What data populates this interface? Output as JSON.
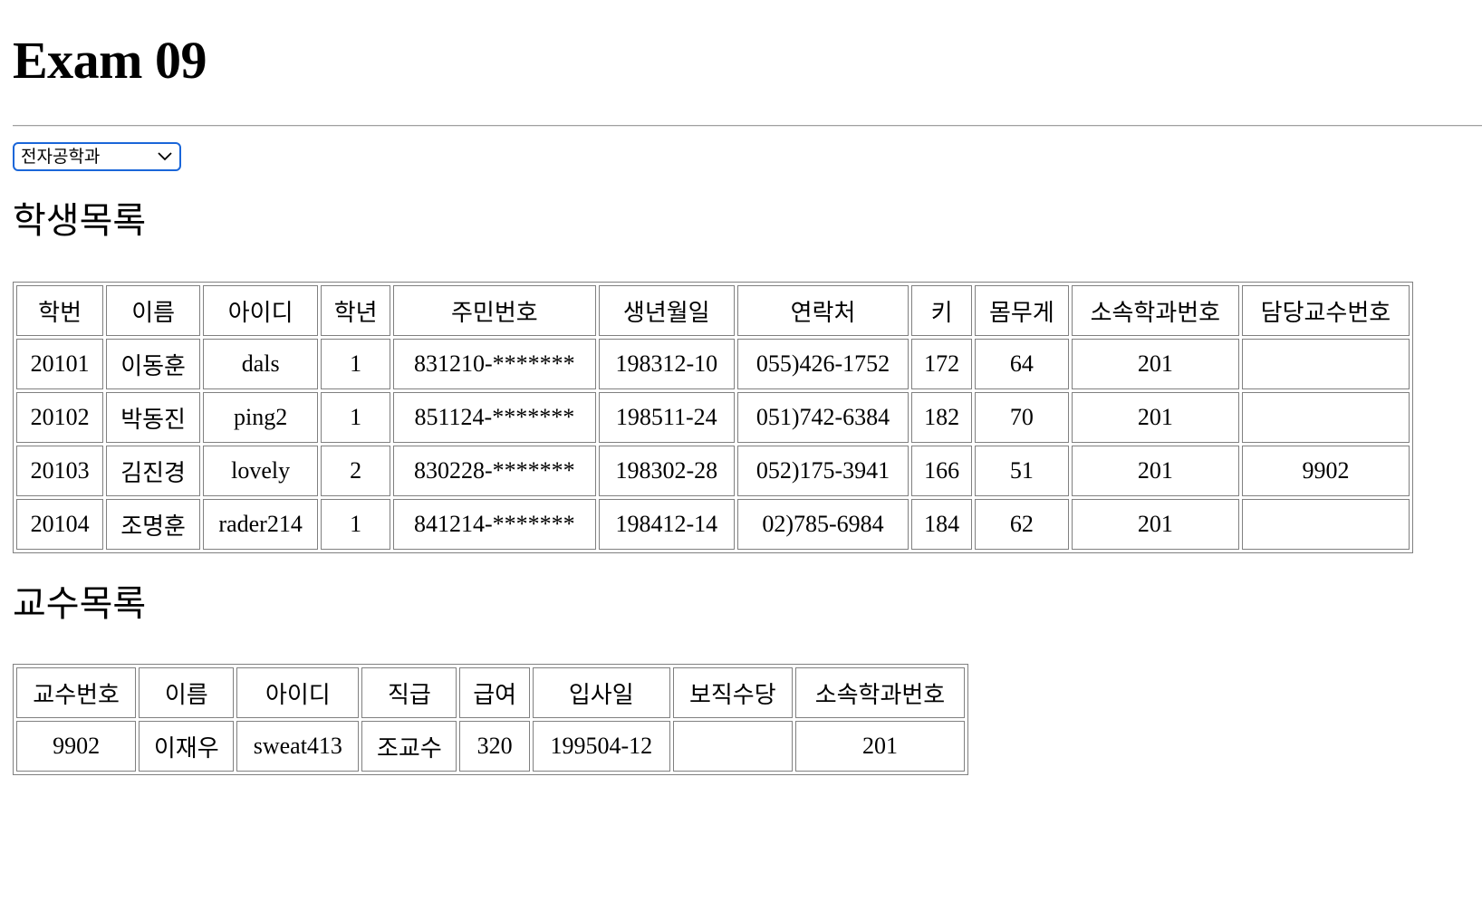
{
  "page": {
    "title": "Exam 09"
  },
  "department_select": {
    "selected": "전자공학과"
  },
  "students": {
    "heading": "학생목록",
    "columns": [
      "학번",
      "이름",
      "아이디",
      "학년",
      "주민번호",
      "생년월일",
      "연락처",
      "키",
      "몸무게",
      "소속학과번호",
      "담당교수번호"
    ],
    "rows": [
      [
        "20101",
        "이동훈",
        "dals",
        "1",
        "831210-*******",
        "198312-10",
        "055)426-1752",
        "172",
        "64",
        "201",
        ""
      ],
      [
        "20102",
        "박동진",
        "ping2",
        "1",
        "851124-*******",
        "198511-24",
        "051)742-6384",
        "182",
        "70",
        "201",
        ""
      ],
      [
        "20103",
        "김진경",
        "lovely",
        "2",
        "830228-*******",
        "198302-28",
        "052)175-3941",
        "166",
        "51",
        "201",
        "9902"
      ],
      [
        "20104",
        "조명훈",
        "rader214",
        "1",
        "841214-*******",
        "198412-14",
        "02)785-6984",
        "184",
        "62",
        "201",
        ""
      ]
    ]
  },
  "professors": {
    "heading": "교수목록",
    "columns": [
      "교수번호",
      "이름",
      "아이디",
      "직급",
      "급여",
      "입사일",
      "보직수당",
      "소속학과번호"
    ],
    "rows": [
      [
        "9902",
        "이재우",
        "sweat413",
        "조교수",
        "320",
        "199504-12",
        "",
        "201"
      ]
    ]
  }
}
